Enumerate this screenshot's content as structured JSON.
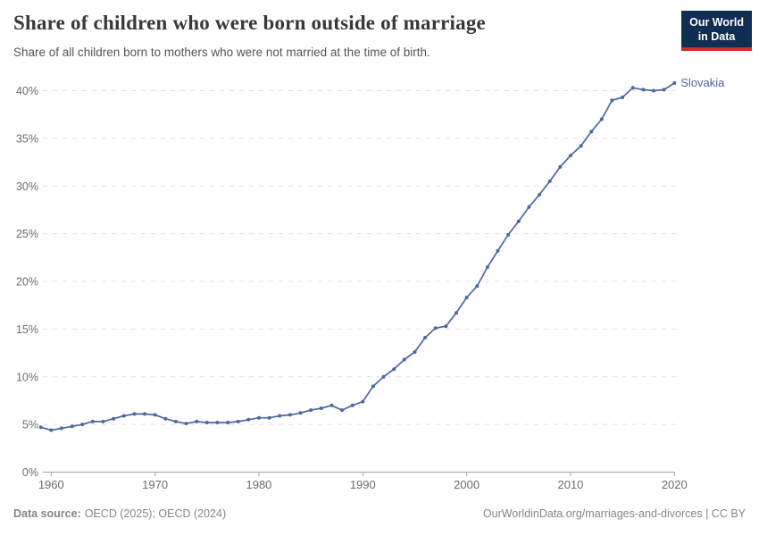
{
  "header": {
    "title": "Share of children who were born outside of marriage",
    "subtitle": "Share of all children born to mothers who were not married at the time of birth."
  },
  "logo": {
    "line1": "Our World",
    "line2": "in Data",
    "bg_color": "#102d54",
    "bar_color": "#c7312b"
  },
  "chart_data": {
    "type": "line",
    "title": "Share of children who were born outside of marriage",
    "xlabel": "",
    "ylabel": "",
    "xlim": [
      1959,
      2020
    ],
    "ylim": [
      0,
      40
    ],
    "xticks": [
      1960,
      1970,
      1980,
      1990,
      2000,
      2010,
      2020
    ],
    "yticks": [
      0,
      5,
      10,
      15,
      20,
      25,
      30,
      35,
      40
    ],
    "ytick_format": "{}%",
    "grid": "dashed-horizontal",
    "legend_position": "end-of-line-label",
    "series": [
      {
        "name": "Slovakia",
        "color": "#4d67a3",
        "points": [
          [
            1959,
            4.7
          ],
          [
            1960,
            4.4
          ],
          [
            1961,
            4.6
          ],
          [
            1962,
            4.8
          ],
          [
            1963,
            5.0
          ],
          [
            1964,
            5.3
          ],
          [
            1965,
            5.3
          ],
          [
            1966,
            5.6
          ],
          [
            1967,
            5.9
          ],
          [
            1968,
            6.1
          ],
          [
            1969,
            6.1
          ],
          [
            1970,
            6.0
          ],
          [
            1971,
            5.6
          ],
          [
            1972,
            5.3
          ],
          [
            1973,
            5.1
          ],
          [
            1974,
            5.3
          ],
          [
            1975,
            5.2
          ],
          [
            1976,
            5.2
          ],
          [
            1977,
            5.2
          ],
          [
            1978,
            5.3
          ],
          [
            1979,
            5.5
          ],
          [
            1980,
            5.7
          ],
          [
            1981,
            5.7
          ],
          [
            1982,
            5.9
          ],
          [
            1983,
            6.0
          ],
          [
            1984,
            6.2
          ],
          [
            1985,
            6.5
          ],
          [
            1986,
            6.7
          ],
          [
            1987,
            7.0
          ],
          [
            1988,
            6.5
          ],
          [
            1989,
            7.0
          ],
          [
            1990,
            7.4
          ],
          [
            1991,
            9.0
          ],
          [
            1992,
            10.0
          ],
          [
            1993,
            10.8
          ],
          [
            1994,
            11.8
          ],
          [
            1995,
            12.6
          ],
          [
            1996,
            14.1
          ],
          [
            1997,
            15.1
          ],
          [
            1998,
            15.3
          ],
          [
            1999,
            16.7
          ],
          [
            2000,
            18.3
          ],
          [
            2001,
            19.5
          ],
          [
            2002,
            21.5
          ],
          [
            2003,
            23.2
          ],
          [
            2004,
            24.9
          ],
          [
            2005,
            26.3
          ],
          [
            2006,
            27.8
          ],
          [
            2007,
            29.1
          ],
          [
            2008,
            30.5
          ],
          [
            2009,
            32.0
          ],
          [
            2010,
            33.2
          ],
          [
            2011,
            34.2
          ],
          [
            2012,
            35.7
          ],
          [
            2013,
            37.0
          ],
          [
            2014,
            39.0
          ],
          [
            2015,
            39.3
          ],
          [
            2016,
            40.3
          ],
          [
            2017,
            40.1
          ],
          [
            2018,
            40.0
          ],
          [
            2019,
            40.1
          ],
          [
            2020,
            40.8
          ]
        ]
      }
    ]
  },
  "footer": {
    "source_label": "Data source:",
    "source_value": "OECD (2025); OECD (2024)",
    "right_text": "OurWorldinData.org/marriages-and-divorces | CC BY"
  }
}
